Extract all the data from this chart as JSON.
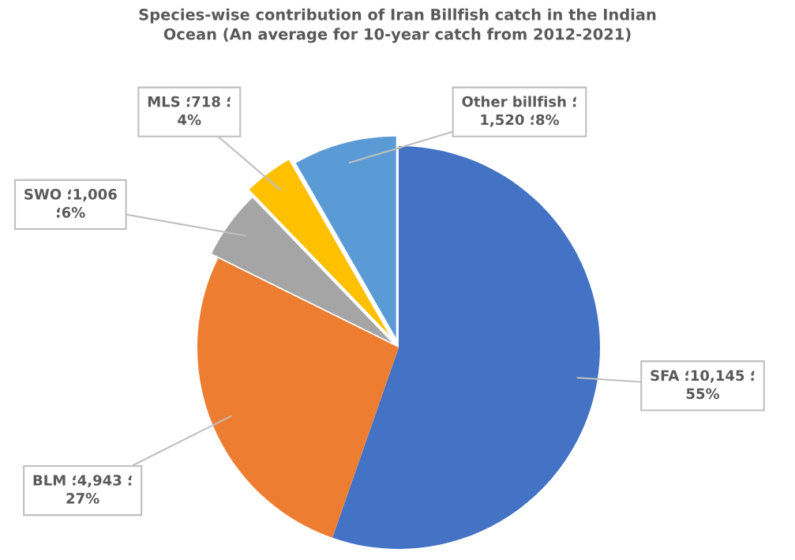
{
  "chart_data": {
    "type": "pie",
    "title": "Species-wise contribution of Iran Billfish catch in the Indian\nOcean (An average for 10-year catch from 2012-2021)",
    "categories": [
      "SFA",
      "BLM",
      "SWO",
      "MLS",
      "Other billfish"
    ],
    "values": [
      10145,
      4943,
      1006,
      718,
      1520
    ],
    "colors": [
      "#4472c4",
      "#ed7d31",
      "#a5a5a5",
      "#ffc000",
      "#5b9bd5"
    ],
    "value_labels": [
      "؛10,145 ؛\n55%",
      "؛4,943 ؛\n27%",
      "؛1,006\n؛6%",
      "؛718 ؛\n4%",
      "؛\n1,520 ؛8%"
    ]
  }
}
